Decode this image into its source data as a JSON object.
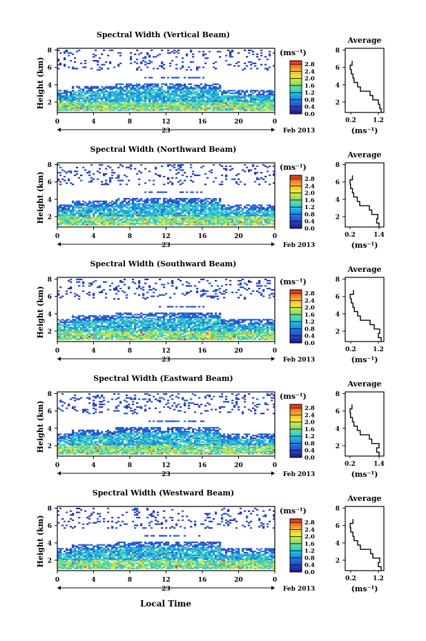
{
  "figure": {
    "x_axis_title": "Local Time",
    "date_center": "23",
    "date_right": "Feb 2013",
    "colorbar_unit": "(ms⁻¹)",
    "avg_title": "Average",
    "avg_unit": "(ms⁻¹)"
  },
  "chart_data": [
    {
      "type": "heatmap",
      "title": "Spectral Width (Vertical Beam)",
      "xlabel": "",
      "ylabel": "Height (km)",
      "x_ticks": [
        "0",
        "4",
        "8",
        "12",
        "16",
        "20",
        "0"
      ],
      "x_range_hours": [
        0,
        24
      ],
      "y_ticks": [
        "2",
        "4",
        "6",
        "8"
      ],
      "ylim_km": [
        0.8,
        8.2
      ],
      "colorbar_ticks": [
        "0.0",
        "0.4",
        "0.8",
        "1.2",
        "1.6",
        "2.0",
        "2.4",
        "2.8"
      ],
      "colorbar_range": [
        0.0,
        3.0
      ],
      "colormap": "jet",
      "missing_color": "#ffffff",
      "average_profile": {
        "title": "Average",
        "xlabel": "(ms⁻¹)",
        "x_ticks": [
          "0.2",
          "1.2"
        ],
        "xlim": [
          0.0,
          1.4
        ],
        "y_ticks": [
          "2",
          "4",
          "6",
          "8"
        ],
        "height_km": [
          1.0,
          1.5,
          2.0,
          2.5,
          3.0,
          3.5,
          4.0,
          4.5,
          5.0,
          5.5,
          6.0,
          6.5
        ],
        "width": [
          1.3,
          1.25,
          1.2,
          1.0,
          0.9,
          0.55,
          0.45,
          0.32,
          0.28,
          0.22,
          0.18,
          0.25
        ]
      }
    },
    {
      "type": "heatmap",
      "title": "Spectral Width (Northward Beam)",
      "xlabel": "",
      "ylabel": "Height (km)",
      "x_ticks": [
        "0",
        "4",
        "8",
        "12",
        "16",
        "20",
        "0"
      ],
      "x_range_hours": [
        0,
        24
      ],
      "y_ticks": [
        "2",
        "4",
        "6",
        "8"
      ],
      "ylim_km": [
        0.8,
        8.2
      ],
      "colorbar_ticks": [
        "0.0",
        "0.4",
        "0.8",
        "1.2",
        "1.6",
        "2.0",
        "2.4",
        "2.8"
      ],
      "colorbar_range": [
        0.0,
        3.0
      ],
      "colormap": "jet",
      "missing_color": "#ffffff",
      "average_profile": {
        "title": "Average",
        "xlabel": "(ms⁻¹)",
        "x_ticks": [
          "0.2",
          "1.4"
        ],
        "xlim": [
          0.0,
          1.6
        ],
        "y_ticks": [
          "2",
          "4",
          "6",
          "8"
        ],
        "height_km": [
          1.0,
          1.5,
          2.0,
          2.5,
          3.0,
          3.5,
          4.0,
          4.5,
          5.0,
          5.5,
          6.0,
          6.5
        ],
        "width": [
          1.4,
          1.3,
          1.35,
          1.1,
          1.0,
          0.6,
          0.5,
          0.35,
          0.3,
          0.22,
          0.2,
          0.3
        ]
      }
    },
    {
      "type": "heatmap",
      "title": "Spectral Width (Southward Beam)",
      "xlabel": "",
      "ylabel": "Height (km)",
      "x_ticks": [
        "0",
        "4",
        "8",
        "12",
        "16",
        "20",
        "0"
      ],
      "x_range_hours": [
        0,
        24
      ],
      "y_ticks": [
        "2",
        "4",
        "6",
        "8"
      ],
      "ylim_km": [
        0.8,
        8.2
      ],
      "colorbar_ticks": [
        "0.0",
        "0.4",
        "0.8",
        "1.2",
        "1.6",
        "2.0",
        "2.4",
        "2.8"
      ],
      "colorbar_range": [
        0.0,
        3.0
      ],
      "colormap": "jet",
      "missing_color": "#ffffff",
      "average_profile": {
        "title": "Average",
        "xlabel": "(ms⁻¹)",
        "x_ticks": [
          "0.2",
          "1.2"
        ],
        "xlim": [
          0.0,
          1.4
        ],
        "y_ticks": [
          "2",
          "4",
          "6",
          "8"
        ],
        "height_km": [
          1.0,
          1.5,
          2.0,
          2.5,
          3.0,
          3.5,
          4.0,
          4.5,
          5.0,
          5.5,
          6.0,
          6.5
        ],
        "width": [
          1.3,
          1.2,
          1.25,
          1.05,
          0.9,
          0.55,
          0.45,
          0.33,
          0.28,
          0.22,
          0.18,
          0.3
        ]
      }
    },
    {
      "type": "heatmap",
      "title": "Spectral Width (Eastward Beam)",
      "xlabel": "",
      "ylabel": "Height (km)",
      "x_ticks": [
        "0",
        "4",
        "8",
        "12",
        "16",
        "20",
        "0"
      ],
      "x_range_hours": [
        0,
        24
      ],
      "y_ticks": [
        "2",
        "4",
        "6",
        "8"
      ],
      "ylim_km": [
        0.8,
        8.2
      ],
      "colorbar_ticks": [
        "0.0",
        "0.4",
        "0.8",
        "1.2",
        "1.6",
        "2.0",
        "2.4",
        "2.8"
      ],
      "colorbar_range": [
        0.0,
        3.0
      ],
      "colormap": "jet",
      "missing_color": "#ffffff",
      "average_profile": {
        "title": "Average",
        "xlabel": "(ms⁻¹)",
        "x_ticks": [
          "0.2",
          "1.4"
        ],
        "xlim": [
          0.0,
          1.6
        ],
        "y_ticks": [
          "2",
          "4",
          "6",
          "8"
        ],
        "height_km": [
          1.0,
          1.5,
          2.0,
          2.5,
          3.0,
          3.5,
          4.0,
          4.5,
          5.0,
          5.5,
          6.0,
          6.5
        ],
        "width": [
          1.4,
          1.3,
          1.4,
          1.1,
          1.0,
          0.62,
          0.5,
          0.36,
          0.3,
          0.22,
          0.2,
          0.28
        ]
      }
    },
    {
      "type": "heatmap",
      "title": "Spectral Width (Westward Beam)",
      "xlabel": "Local Time",
      "ylabel": "Height (km)",
      "x_ticks": [
        "0",
        "4",
        "8",
        "12",
        "16",
        "20",
        "0"
      ],
      "x_range_hours": [
        0,
        24
      ],
      "y_ticks": [
        "2",
        "4",
        "6",
        "8"
      ],
      "ylim_km": [
        0.8,
        8.2
      ],
      "colorbar_ticks": [
        "0.0",
        "0.4",
        "0.8",
        "1.2",
        "1.6",
        "2.0",
        "2.4",
        "2.8"
      ],
      "colorbar_range": [
        0.0,
        3.0
      ],
      "colormap": "jet",
      "missing_color": "#ffffff",
      "average_profile": {
        "title": "Average",
        "xlabel": "(ms⁻¹)",
        "x_ticks": [
          "0.2",
          "1.2"
        ],
        "xlim": [
          0.0,
          1.4
        ],
        "y_ticks": [
          "2",
          "4",
          "6",
          "8"
        ],
        "height_km": [
          1.0,
          1.5,
          2.0,
          2.5,
          3.0,
          3.5,
          4.0,
          4.5,
          5.0,
          5.5,
          6.0,
          6.5
        ],
        "width": [
          1.3,
          1.2,
          1.25,
          1.0,
          0.92,
          0.55,
          0.45,
          0.32,
          0.28,
          0.2,
          0.18,
          0.28
        ]
      }
    }
  ]
}
